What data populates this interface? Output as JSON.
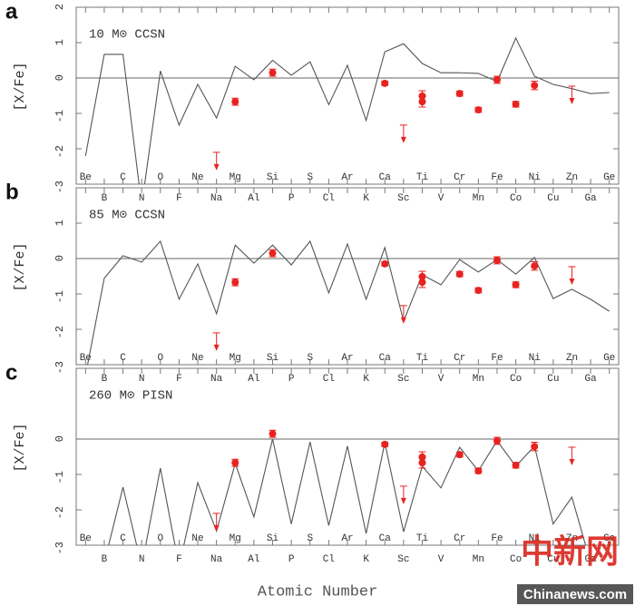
{
  "chart_data": [
    {
      "type": "line",
      "panel": "a",
      "title": "10 M⊙ CCSN",
      "ylabel": "[X/Fe]",
      "xlim": [
        3.5,
        32.5
      ],
      "ylim": [
        -3,
        2
      ],
      "yticks": [
        2,
        1,
        0,
        -1,
        -2,
        -3
      ],
      "hline": 0,
      "xticks": [
        {
          "value": 4,
          "label": "Be"
        },
        {
          "value": 5,
          "label": "B"
        },
        {
          "value": 6,
          "label": "C"
        },
        {
          "value": 7,
          "label": "N"
        },
        {
          "value": 8,
          "label": "O"
        },
        {
          "value": 9,
          "label": "F"
        },
        {
          "value": 10,
          "label": "Ne"
        },
        {
          "value": 11,
          "label": "Na"
        },
        {
          "value": 12,
          "label": "Mg"
        },
        {
          "value": 13,
          "label": "Al"
        },
        {
          "value": 14,
          "label": "Si"
        },
        {
          "value": 15,
          "label": "P"
        },
        {
          "value": 16,
          "label": "S"
        },
        {
          "value": 17,
          "label": "Cl"
        },
        {
          "value": 18,
          "label": "Ar"
        },
        {
          "value": 19,
          "label": "K"
        },
        {
          "value": 20,
          "label": "Ca"
        },
        {
          "value": 21,
          "label": "Sc"
        },
        {
          "value": 22,
          "label": "Ti"
        },
        {
          "value": 23,
          "label": "V"
        },
        {
          "value": 24,
          "label": "Cr"
        },
        {
          "value": 25,
          "label": "Mn"
        },
        {
          "value": 26,
          "label": "Fe"
        },
        {
          "value": 27,
          "label": "Co"
        },
        {
          "value": 28,
          "label": "Ni"
        },
        {
          "value": 29,
          "label": "Cu"
        },
        {
          "value": 30,
          "label": "Zn"
        },
        {
          "value": 31,
          "label": "Ga"
        },
        {
          "value": 32,
          "label": "Ge"
        }
      ],
      "model": {
        "color": "#555555",
        "x": [
          4,
          5,
          6,
          7,
          8,
          9,
          10,
          11,
          12,
          13,
          14,
          15,
          16,
          17,
          18,
          19,
          20,
          21,
          22,
          23,
          24,
          25,
          26,
          27,
          28,
          29,
          30,
          31,
          32
        ],
        "values": [
          -2.2,
          0.67,
          0.67,
          -3.6,
          0.2,
          -1.33,
          -0.18,
          -1.13,
          0.33,
          -0.05,
          0.5,
          0.08,
          0.46,
          -0.75,
          0.36,
          -1.2,
          0.74,
          0.97,
          0.41,
          0.15,
          0.15,
          0.13,
          -0.1,
          1.13,
          0.05,
          -0.18,
          -0.3,
          -0.44,
          -0.41
        ]
      },
      "observed": {
        "color": "#e8231f",
        "x": [
          12,
          14,
          20,
          22,
          22,
          24,
          25,
          26,
          27,
          28
        ],
        "values": [
          -0.67,
          0.15,
          -0.15,
          -0.51,
          -0.67,
          -0.44,
          -0.9,
          -0.05,
          -0.74,
          -0.21
        ],
        "errors": [
          0.1,
          0.1,
          0.06,
          0.15,
          0.15,
          0.07,
          0.07,
          0.1,
          0.08,
          0.12
        ]
      },
      "upper_limits": {
        "color": "#e8231f",
        "x": [
          11,
          21,
          30
        ],
        "values": [
          -2.1,
          -1.33,
          -0.23
        ]
      }
    },
    {
      "type": "line",
      "panel": "b",
      "title": "85 M⊙ CCSN",
      "ylabel": "[X/Fe]",
      "xlim": [
        3.5,
        32.5
      ],
      "ylim": [
        -3,
        2
      ],
      "yticks": [
        1,
        0,
        -1,
        -2,
        -3
      ],
      "hline": 0,
      "model": {
        "color": "#555555",
        "x": [
          4,
          5,
          6,
          7,
          8,
          9,
          10,
          11,
          12,
          13,
          14,
          15,
          16,
          17,
          18,
          19,
          20,
          21,
          22,
          23,
          24,
          25,
          26,
          27,
          28,
          29,
          30,
          31,
          32
        ],
        "values": [
          -3.3,
          -0.56,
          0.08,
          -0.1,
          0.49,
          -1.15,
          -0.15,
          -1.56,
          0.38,
          -0.13,
          0.38,
          -0.18,
          0.49,
          -0.97,
          0.41,
          -1.15,
          0.31,
          -1.77,
          -0.46,
          -0.74,
          -0.03,
          -0.38,
          -0.03,
          -0.44,
          0.03,
          -1.13,
          -0.87,
          -1.15,
          -1.49
        ]
      },
      "observed": {
        "color": "#e8231f",
        "x": [
          12,
          14,
          20,
          22,
          22,
          24,
          25,
          26,
          27,
          28
        ],
        "values": [
          -0.67,
          0.15,
          -0.15,
          -0.51,
          -0.67,
          -0.44,
          -0.9,
          -0.05,
          -0.74,
          -0.21
        ],
        "errors": [
          0.1,
          0.1,
          0.06,
          0.15,
          0.15,
          0.07,
          0.07,
          0.1,
          0.08,
          0.12
        ]
      },
      "upper_limits": {
        "color": "#e8231f",
        "x": [
          11,
          21,
          30
        ],
        "values": [
          -2.1,
          -1.33,
          -0.23
        ]
      }
    },
    {
      "type": "line",
      "panel": "c",
      "title": "260 M⊙ PISN",
      "ylabel": "[X/Fe]",
      "xlabel": "Atomic Number",
      "xlim": [
        3.5,
        32.5
      ],
      "ylim": [
        -3,
        2
      ],
      "yticks": [
        0,
        -1,
        -2,
        -3
      ],
      "hline": 0,
      "model": {
        "color": "#555555",
        "x": [
          4,
          5,
          6,
          7,
          8,
          9,
          10,
          11,
          12,
          13,
          14,
          15,
          16,
          17,
          18,
          19,
          20,
          21,
          22,
          23,
          24,
          25,
          26,
          27,
          28,
          29,
          30,
          31
        ],
        "values": [
          -3.6,
          -3.5,
          -1.36,
          -3.6,
          -0.82,
          -3.6,
          -1.23,
          -2.6,
          -0.69,
          -2.2,
          0.0,
          -2.4,
          -0.08,
          -2.44,
          -0.2,
          -2.67,
          -0.1,
          -2.62,
          -0.77,
          -1.38,
          -0.23,
          -0.9,
          -0.05,
          -0.77,
          -0.2,
          -2.4,
          -1.64,
          -3.5
        ]
      },
      "observed": {
        "color": "#e8231f",
        "x": [
          12,
          14,
          20,
          22,
          22,
          24,
          25,
          26,
          27,
          28
        ],
        "values": [
          -0.67,
          0.15,
          -0.15,
          -0.51,
          -0.67,
          -0.44,
          -0.9,
          -0.05,
          -0.74,
          -0.21
        ],
        "errors": [
          0.1,
          0.1,
          0.06,
          0.15,
          0.15,
          0.07,
          0.07,
          0.1,
          0.08,
          0.12
        ]
      },
      "upper_limits": {
        "color": "#e8231f",
        "x": [
          11,
          21,
          30
        ],
        "values": [
          -2.1,
          -1.33,
          -0.23
        ]
      }
    }
  ],
  "watermark": {
    "brand": "中新网",
    "site": "Chinanews.com"
  }
}
